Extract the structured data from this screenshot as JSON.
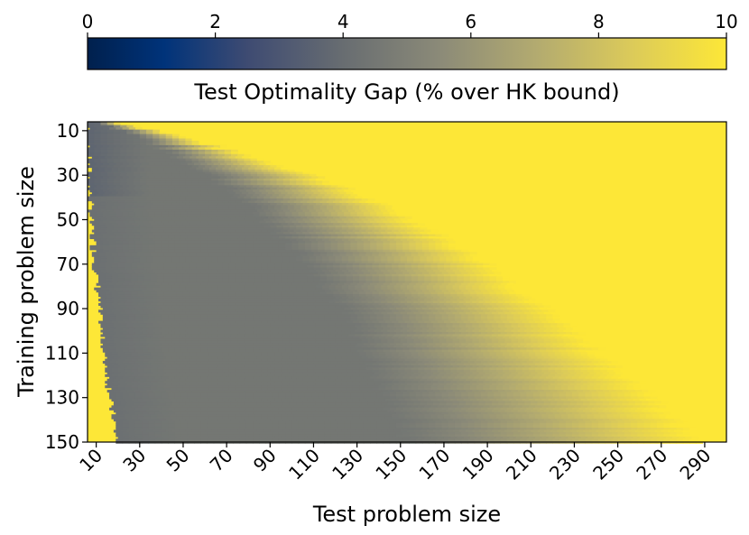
{
  "chart_data": {
    "type": "heatmap",
    "title": "",
    "xlabel": "Test problem size",
    "ylabel": "Training problem size",
    "x_range": [
      6,
      300
    ],
    "y_range": [
      6,
      150
    ],
    "x_ticks": [
      "10",
      "30",
      "50",
      "70",
      "90",
      "110",
      "130",
      "150",
      "170",
      "190",
      "210",
      "230",
      "250",
      "270",
      "290"
    ],
    "y_ticks": [
      "10",
      "30",
      "50",
      "70",
      "90",
      "110",
      "130",
      "150"
    ],
    "colorbar": {
      "label": "Test Optimality Gap (% over HK bound)",
      "range": [
        0,
        10
      ],
      "ticks": [
        "0",
        "2",
        "4",
        "6",
        "8",
        "10"
      ],
      "colormap": "cividis",
      "orientation": "horizontal",
      "position": "top"
    },
    "pattern": {
      "description_rows": [
        {
          "train": 6,
          "good_from": 6,
          "good_to": 10,
          "saturate_at": 18
        },
        {
          "train": 10,
          "good_from": 6,
          "good_to": 22,
          "saturate_at": 38
        },
        {
          "train": 30,
          "good_from": 7,
          "good_to": 60,
          "saturate_at": 110
        },
        {
          "train": 50,
          "good_from": 8,
          "good_to": 85,
          "saturate_at": 155
        },
        {
          "train": 70,
          "good_from": 10,
          "good_to": 105,
          "saturate_at": 190
        },
        {
          "train": 90,
          "good_from": 12,
          "good_to": 120,
          "saturate_at": 215
        },
        {
          "train": 110,
          "good_from": 14,
          "good_to": 130,
          "saturate_at": 240
        },
        {
          "train": 130,
          "good_from": 17,
          "good_to": 140,
          "saturate_at": 265
        },
        {
          "train": 150,
          "good_from": 20,
          "good_to": 150,
          "saturate_at": 285
        }
      ],
      "low_value": 4.5,
      "saturated_value": 10
    }
  }
}
